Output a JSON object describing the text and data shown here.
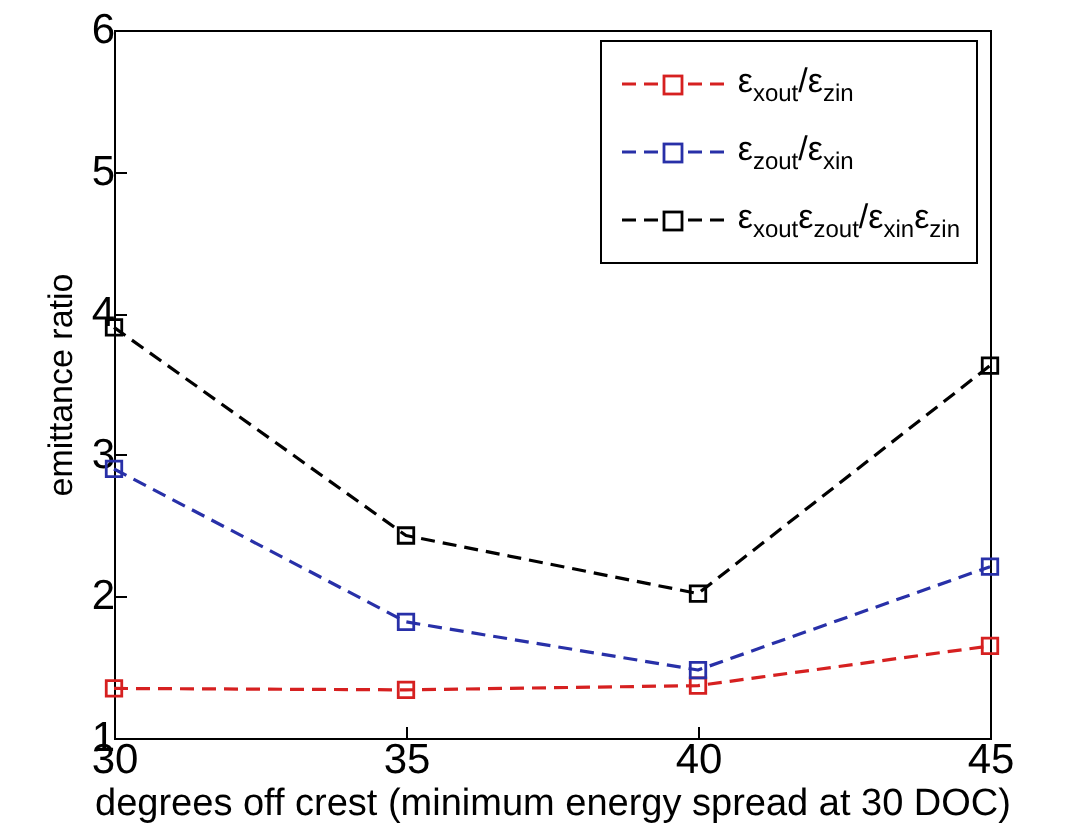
{
  "chart_data": {
    "type": "line",
    "xlabel": "degrees off crest (minimum energy spread at 30 DOC)",
    "ylabel": "emittance ratio",
    "x": [
      30,
      35,
      40,
      45
    ],
    "xlim": [
      30,
      45
    ],
    "xticks": [
      30,
      35,
      40,
      45
    ],
    "ylim": [
      1,
      6
    ],
    "yticks": [
      1,
      2,
      3,
      4,
      5,
      6
    ],
    "grid": false,
    "legend": "top right",
    "marker": "square",
    "line_style": "dashed",
    "series": [
      {
        "name": "ε$_{xout}$/ε$_{zin}$",
        "color": "#d62020",
        "values": [
          1.35,
          1.34,
          1.37,
          1.65
        ]
      },
      {
        "name": "ε$_{zout}$/ε$_{xin}$",
        "color": "#2830a8",
        "values": [
          2.9,
          1.82,
          1.48,
          2.21
        ]
      },
      {
        "name": "ε$_{xout}$ε$_{zout}$/ε$_{xin}$ε$_{zin}$",
        "color": "#000000",
        "values": [
          3.9,
          2.43,
          2.02,
          3.63
        ]
      }
    ]
  }
}
